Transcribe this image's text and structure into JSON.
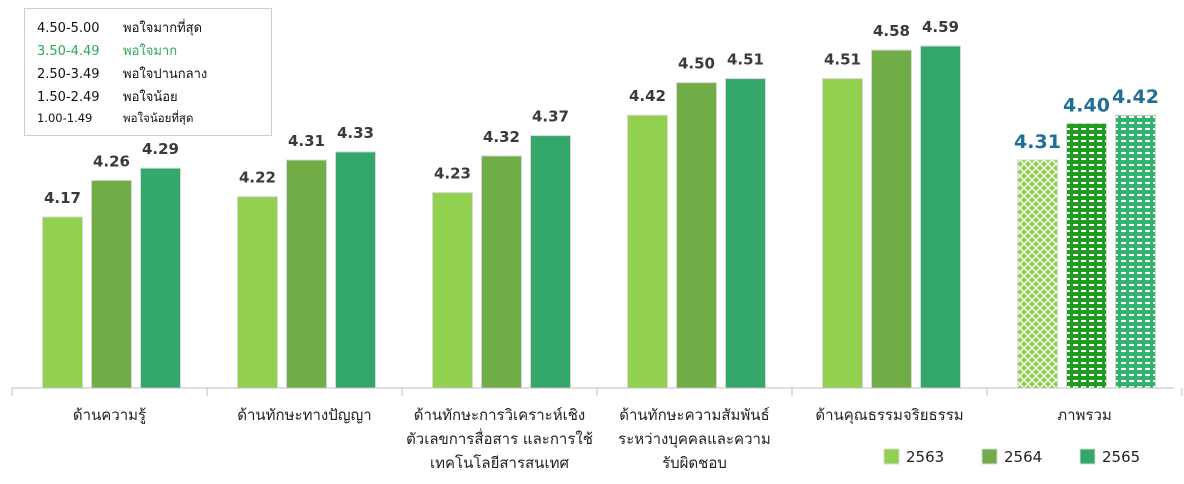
{
  "scale_legend": [
    {
      "range": "4.50-5.00",
      "label": "พอใจมากที่สุด",
      "color": "#111111"
    },
    {
      "range": "3.50-4.49",
      "label": "พอใจมาก",
      "color": "#2eaa55"
    },
    {
      "range": "2.50-3.49",
      "label": "พอใจปานกลาง",
      "color": "#111111"
    },
    {
      "range": "1.50-2.49",
      "label": "พอใจน้อย",
      "color": "#111111"
    },
    {
      "range": "1.00-1.49",
      "label": "พอใจน้อยที่สุด",
      "color": "#111111"
    }
  ],
  "chart_data": {
    "type": "bar",
    "title": "",
    "xlabel": "",
    "ylabel": "",
    "ylim": [
      3.75,
      4.7
    ],
    "grid": false,
    "legend_position": "bottom-right",
    "categories": [
      [
        "ด้านความรู้"
      ],
      [
        "ด้านทักษะทางปัญญา"
      ],
      [
        "ด้านทักษะการวิเคราะห์เชิง",
        "ตัวเลขการสื่อสาร และการใช้",
        "เทคโนโลยีสารสนเทศ"
      ],
      [
        "ด้านทักษะความสัมพันธ์",
        "ระหว่างบุคคลและความ",
        "รับผิดชอบ"
      ],
      [
        "ด้านคุณธรรมจริยธรรม"
      ],
      [
        "ภาพรวม"
      ]
    ],
    "series": [
      {
        "name": "2563",
        "color": "#92d050",
        "values": [
          4.17,
          4.22,
          4.23,
          4.42,
          4.51,
          4.31
        ]
      },
      {
        "name": "2564",
        "color": "#70ad47",
        "values": [
          4.26,
          4.31,
          4.32,
          4.5,
          4.58,
          4.4
        ]
      },
      {
        "name": "2565",
        "color": "#34a86b",
        "values": [
          4.29,
          4.33,
          4.37,
          4.51,
          4.59,
          4.42
        ]
      }
    ],
    "value_labels": [
      [
        "4.17",
        "4.22",
        "4.23",
        "4.42",
        "4.51",
        "4.31"
      ],
      [
        "4.26",
        "4.31",
        "4.32",
        "4.50",
        "4.58",
        "4.40"
      ],
      [
        "4.29",
        "4.33",
        "4.37",
        "4.51",
        "4.59",
        "4.42"
      ]
    ],
    "pattern_fill_last_category": true,
    "overall_label_color": "#1f6f96"
  }
}
